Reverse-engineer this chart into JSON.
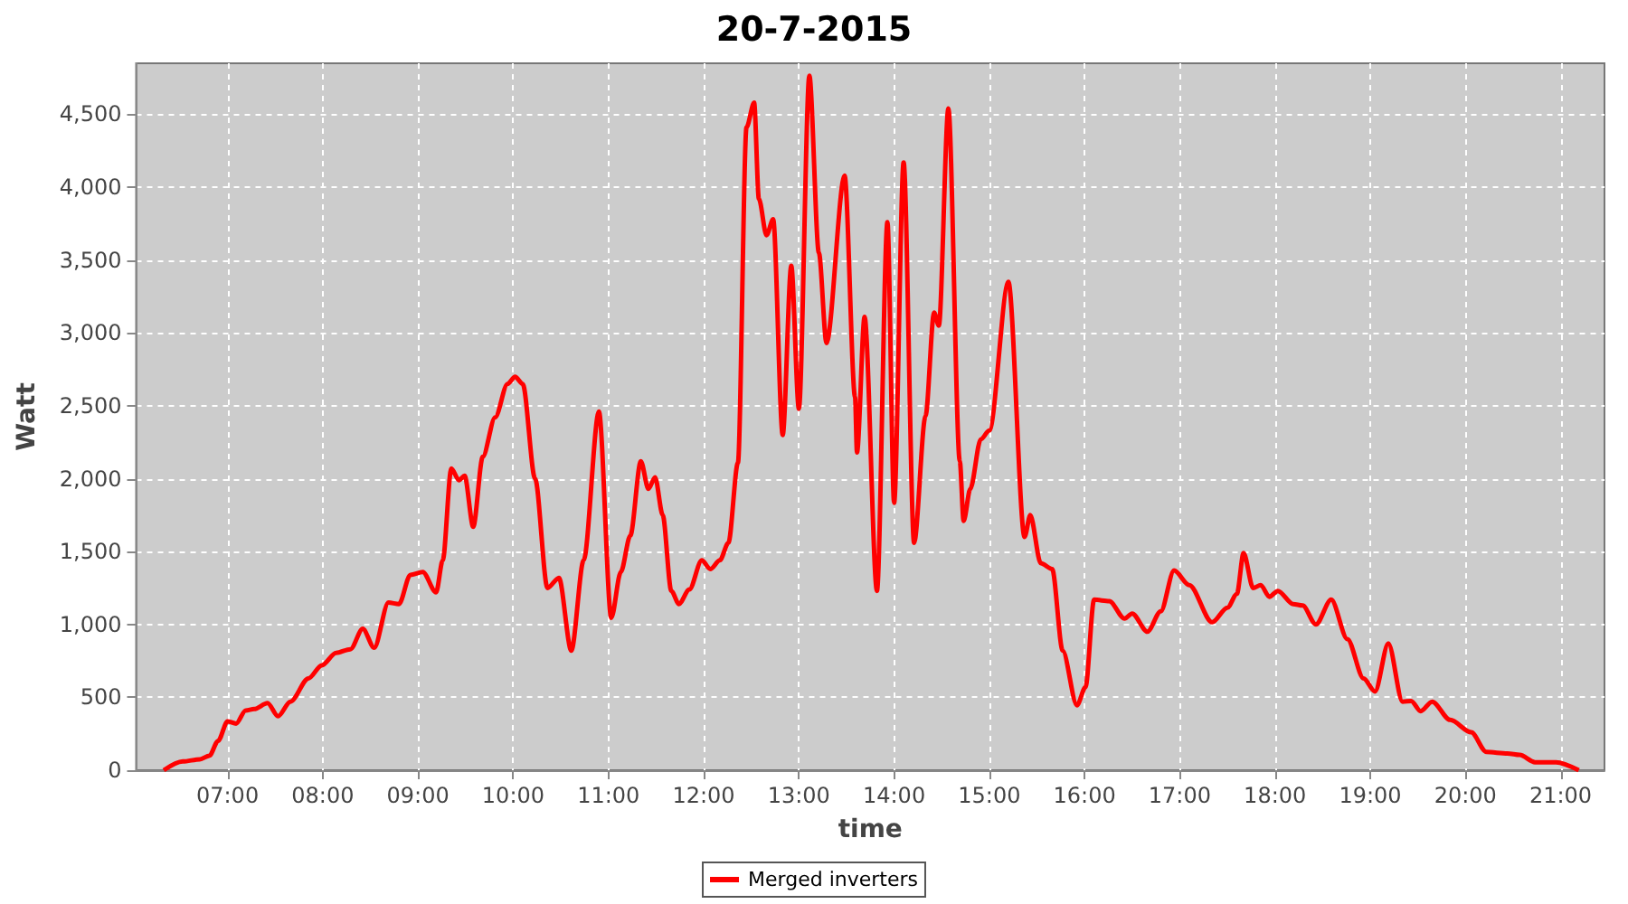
{
  "chart_data": {
    "type": "line",
    "title": "20-7-2015",
    "xlabel": "time",
    "ylabel": "Watt",
    "xlim": [
      6.04,
      21.46
    ],
    "ylim": [
      0,
      4850
    ],
    "xticks": [
      {
        "value": 7,
        "label": "07:00"
      },
      {
        "value": 8,
        "label": "08:00"
      },
      {
        "value": 9,
        "label": "09:00"
      },
      {
        "value": 10,
        "label": "10:00"
      },
      {
        "value": 11,
        "label": "11:00"
      },
      {
        "value": 12,
        "label": "12:00"
      },
      {
        "value": 13,
        "label": "13:00"
      },
      {
        "value": 14,
        "label": "14:00"
      },
      {
        "value": 15,
        "label": "15:00"
      },
      {
        "value": 16,
        "label": "16:00"
      },
      {
        "value": 17,
        "label": "17:00"
      },
      {
        "value": 18,
        "label": "18:00"
      },
      {
        "value": 19,
        "label": "19:00"
      },
      {
        "value": 20,
        "label": "20:00"
      },
      {
        "value": 21,
        "label": "21:00"
      }
    ],
    "yticks": [
      0,
      500,
      {
        "value": 1000,
        "label": "1,000"
      },
      {
        "value": 1500,
        "label": "1,500"
      },
      {
        "value": 2000,
        "label": "2,000"
      },
      {
        "value": 2500,
        "label": "2,500"
      },
      {
        "value": 3000,
        "label": "3,000"
      },
      {
        "value": 3500,
        "label": "3,500"
      },
      {
        "value": 4000,
        "label": "4,000"
      },
      {
        "value": 4500,
        "label": "4,500"
      }
    ],
    "grid": true,
    "legend": "bottom",
    "marker": "none",
    "line_style": "solid",
    "series": [
      {
        "name": "Merged inverters",
        "color": "#ff0000",
        "x": [
          6.33,
          6.53,
          6.71,
          6.81,
          6.9,
          7.0,
          7.09,
          7.19,
          7.28,
          7.42,
          7.53,
          7.66,
          7.85,
          7.99,
          8.14,
          8.29,
          8.42,
          8.54,
          8.69,
          8.8,
          8.92,
          9.05,
          9.19,
          9.26,
          9.35,
          9.43,
          9.49,
          9.58,
          9.68,
          9.81,
          9.94,
          10.02,
          10.1,
          10.23,
          10.36,
          10.48,
          10.61,
          10.74,
          10.9,
          11.03,
          11.13,
          11.23,
          11.34,
          11.42,
          11.49,
          11.57,
          11.66,
          11.74,
          11.85,
          11.98,
          12.07,
          12.17,
          12.26,
          12.36,
          12.45,
          12.53,
          12.58,
          12.66,
          12.73,
          12.83,
          12.92,
          13.0,
          13.11,
          13.21,
          13.29,
          13.48,
          13.59,
          13.61,
          13.69,
          13.82,
          13.93,
          14.0,
          14.1,
          14.21,
          14.33,
          14.42,
          14.47,
          14.57,
          14.69,
          14.73,
          14.8,
          14.91,
          15.0,
          15.2,
          15.37,
          15.43,
          15.54,
          15.66,
          15.77,
          15.92,
          16.01,
          16.1,
          16.26,
          16.42,
          16.5,
          16.66,
          16.8,
          16.94,
          17.1,
          17.34,
          17.5,
          17.6,
          17.67,
          17.77,
          17.85,
          17.94,
          18.03,
          18.19,
          18.29,
          18.43,
          18.59,
          18.76,
          18.93,
          19.05,
          19.19,
          19.34,
          19.43,
          19.53,
          19.65,
          19.84,
          20.06,
          20.22,
          20.44,
          20.57,
          20.73,
          20.95,
          21.19
        ],
        "values": [
          0,
          60,
          75,
          100,
          200,
          335,
          320,
          410,
          420,
          460,
          370,
          470,
          630,
          720,
          805,
          830,
          970,
          840,
          1150,
          1140,
          1340,
          1360,
          1220,
          1440,
          2070,
          1990,
          2020,
          1670,
          2150,
          2420,
          2650,
          2700,
          2650,
          2000,
          1250,
          1320,
          820,
          1440,
          2460,
          1045,
          1360,
          1610,
          2120,
          1930,
          2010,
          1750,
          1230,
          1140,
          1240,
          1440,
          1380,
          1440,
          1560,
          2110,
          4410,
          4580,
          3920,
          3670,
          3780,
          2300,
          3460,
          2480,
          4765,
          3550,
          2930,
          4080,
          2560,
          2180,
          3110,
          1230,
          3760,
          1835,
          4170,
          1560,
          2430,
          3140,
          3050,
          4540,
          2120,
          1710,
          1930,
          2270,
          2330,
          3350,
          1600,
          1750,
          1420,
          1380,
          820,
          445,
          570,
          1170,
          1160,
          1040,
          1075,
          950,
          1090,
          1370,
          1270,
          1015,
          1115,
          1210,
          1490,
          1250,
          1270,
          1190,
          1230,
          1140,
          1130,
          1000,
          1170,
          900,
          630,
          540,
          870,
          470,
          475,
          405,
          470,
          345,
          260,
          125,
          115,
          105,
          55,
          55,
          0
        ]
      }
    ]
  }
}
